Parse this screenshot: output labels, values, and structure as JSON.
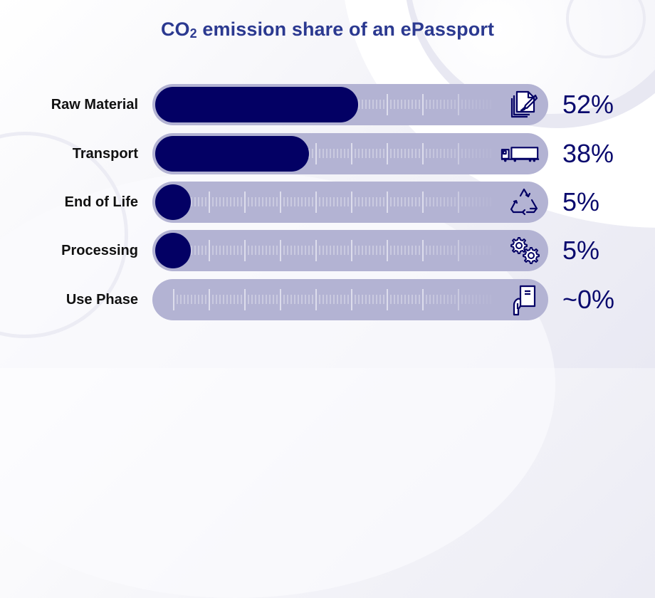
{
  "title": {
    "prefix": "CO",
    "subscript": "2",
    "suffix": " emission share of an ePassport"
  },
  "colors": {
    "title": "#2b3990",
    "fill": "#030064",
    "track": "#b3b3d3",
    "value_text": "#0a0a6e",
    "label_text": "#111111"
  },
  "rows": [
    {
      "label": "Raw Material",
      "value": "52%",
      "icon": "document-brush-icon"
    },
    {
      "label": "Transport",
      "value": "38%",
      "icon": "truck-icon"
    },
    {
      "label": "End of Life",
      "value": "5%",
      "icon": "recycle-icon"
    },
    {
      "label": "Processing",
      "value": "5%",
      "icon": "gears-icon"
    },
    {
      "label": "Use Phase",
      "value": "~0%",
      "icon": "hand-holding-passport-icon"
    }
  ],
  "chart_data": {
    "type": "bar",
    "orientation": "horizontal",
    "title": "CO2 emission share of an ePassport",
    "categories": [
      "Raw Material",
      "Transport",
      "End of Life",
      "Processing",
      "Use Phase"
    ],
    "values": [
      52,
      38,
      5,
      5,
      0
    ],
    "value_labels": [
      "52%",
      "38%",
      "5%",
      "5%",
      "~0%"
    ],
    "unit": "%",
    "xlabel": "",
    "ylabel": "",
    "xlim": [
      0,
      100
    ],
    "grid": false,
    "legend": null,
    "bar_style": "rounded pill tracks with ruler tick marks and category icons"
  }
}
